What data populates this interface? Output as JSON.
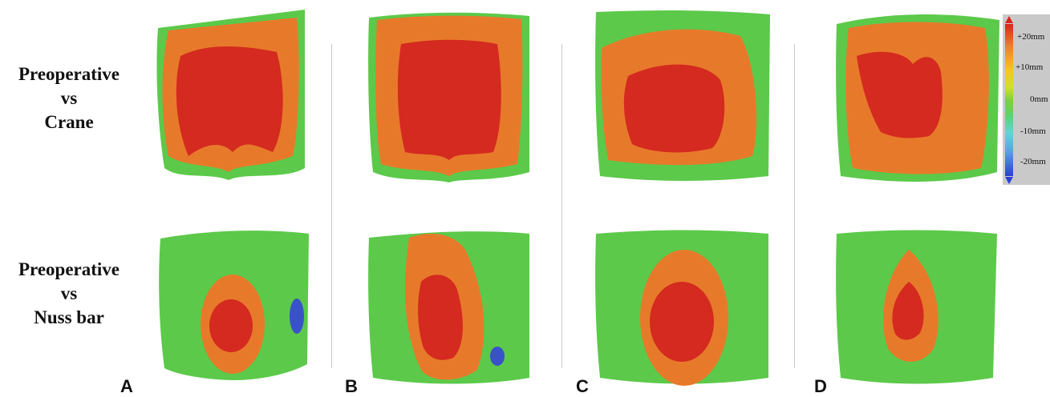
{
  "rows": [
    {
      "line1": "Preoperative",
      "line2": "vs",
      "line3": "Crane"
    },
    {
      "line1": "Preoperative",
      "line2": "vs",
      "line3": "Nuss bar"
    }
  ],
  "panels": [
    "A",
    "B",
    "C",
    "D"
  ],
  "scale": {
    "ticks": [
      "+20mm",
      "+10mm",
      "0mm",
      "-10mm",
      "-20mm"
    ],
    "top_color": "#d7261e",
    "bottom_color": "#2b3fd6"
  }
}
